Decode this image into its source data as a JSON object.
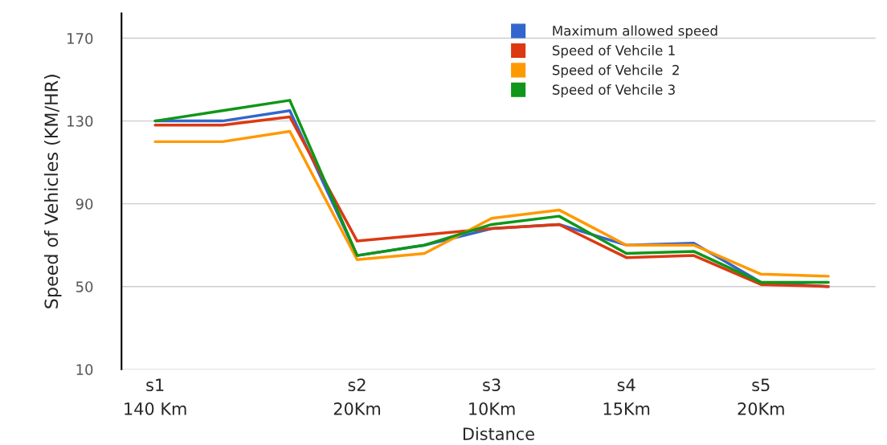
{
  "chart_data": {
    "type": "line",
    "xlabel": "Distance",
    "ylabel": "Speed of Vehicles (KM/HR)",
    "categories": [
      "s1\n140 Km",
      null,
      null,
      "s2\n20Km",
      null,
      "s3\n10Km",
      null,
      "s4\n15Km",
      null,
      "s5\n20Km",
      null
    ],
    "ylim": [
      10,
      182
    ],
    "yticks": [
      10,
      50,
      90,
      130,
      170
    ],
    "grid": "y",
    "legend": "top",
    "marker": "none",
    "line_style": "solid",
    "series": [
      {
        "name": "Maximum allowed speed",
        "color": "#3366cc",
        "values": [
          130,
          130,
          135,
          65,
          70,
          78,
          80,
          70,
          71,
          52,
          50
        ]
      },
      {
        "name": "Speed of Vehcile 1",
        "color": "#dc3912",
        "values": [
          128,
          128,
          132,
          72,
          75,
          78,
          80,
          64,
          65,
          51,
          50
        ]
      },
      {
        "name": "Speed of Vehcile  2",
        "color": "#ff9900",
        "values": [
          120,
          120,
          125,
          63,
          66,
          83,
          87,
          70,
          70,
          56,
          55
        ]
      },
      {
        "name": "Speed of Vehcile 3",
        "color": "#109618",
        "values": [
          130,
          135,
          140,
          65,
          70,
          80,
          84,
          66,
          67,
          52,
          52
        ]
      }
    ]
  }
}
